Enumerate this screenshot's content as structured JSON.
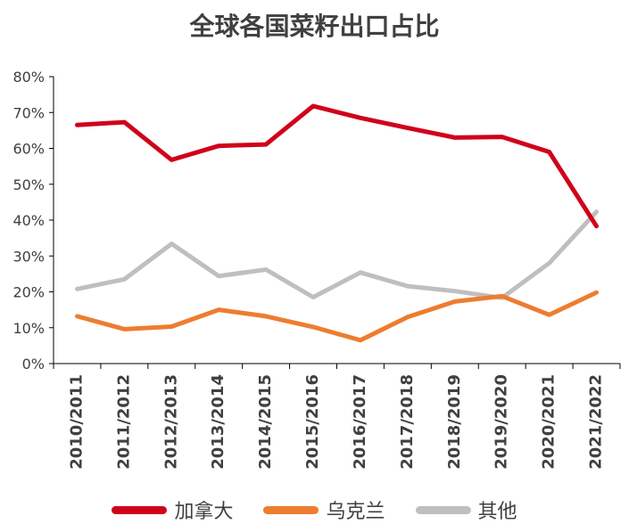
{
  "chart_data": {
    "type": "line",
    "title": "全球各国菜籽出口占比",
    "categories": [
      "2010/2011",
      "2011/2012",
      "2012/2013",
      "2013/2014",
      "2014/2015",
      "2015/2016",
      "2016/2017",
      "2017/2018",
      "2018/2019",
      "2019/2020",
      "2020/2021",
      "2021/2022"
    ],
    "y_ticks": [
      "0%",
      "10%",
      "20%",
      "30%",
      "40%",
      "50%",
      "60%",
      "70%",
      "80%"
    ],
    "ylim": [
      0,
      80
    ],
    "grid": false,
    "legend_position": "bottom",
    "series": [
      {
        "name": "加拿大",
        "color": "#d0021b",
        "values": [
          66.5,
          67.3,
          56.8,
          60.7,
          61.1,
          71.8,
          68.5,
          65.7,
          63.0,
          63.2,
          59.0,
          38.3
        ]
      },
      {
        "name": "乌克兰",
        "color": "#ed7d31",
        "values": [
          13.2,
          9.6,
          10.3,
          15.0,
          13.2,
          10.2,
          6.5,
          13.0,
          17.3,
          18.8,
          13.6,
          19.8
        ]
      },
      {
        "name": "其他",
        "color": "#bfbfbf",
        "values": [
          20.8,
          23.5,
          33.4,
          24.4,
          26.2,
          18.5,
          25.4,
          21.6,
          20.2,
          18.3,
          28.0,
          42.3
        ]
      }
    ]
  }
}
